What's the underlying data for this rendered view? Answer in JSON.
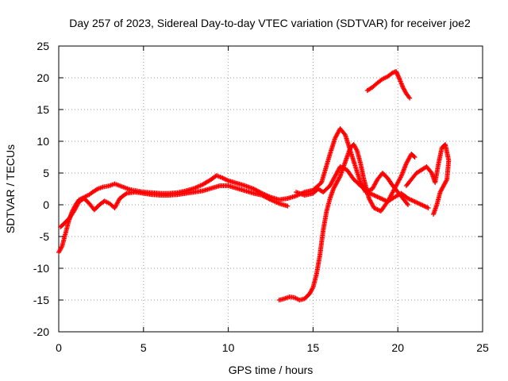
{
  "chart_data": {
    "type": "scatter",
    "title": "Day 257 of 2023, Sidereal Day-to-day VTEC variation (SDTVAR) for receiver joe2",
    "xlabel": "GPS time / hours",
    "ylabel": "SDTVAR / TECUs",
    "xlim": [
      0,
      25
    ],
    "ylim": [
      -20,
      25
    ],
    "xticks": [
      "0",
      "5",
      "10",
      "15",
      "20",
      "25"
    ],
    "yticks": [
      "-20",
      "-15",
      "-10",
      "-5",
      "0",
      "5",
      "10",
      "15",
      "20",
      "25"
    ],
    "grid": true,
    "legend": "none",
    "marker": "plus",
    "color": "#ff0000",
    "series": [
      {
        "name": "track-main",
        "x": [
          0.0,
          0.2,
          0.4,
          0.6,
          0.8,
          1.0,
          1.2,
          1.5,
          1.8,
          2.0,
          2.3,
          2.6,
          3.0,
          3.3,
          3.6,
          3.9,
          4.2,
          4.6,
          5.0,
          5.5,
          6.0,
          6.5,
          7.0,
          7.5,
          8.0,
          8.5,
          9.0,
          9.3,
          9.6,
          10.0,
          10.5,
          11.0,
          11.5,
          12.0,
          12.5,
          13.0,
          13.5,
          14.0,
          14.5,
          15.0,
          15.5,
          16.0,
          16.3,
          16.6,
          16.9,
          17.2,
          17.5,
          17.8,
          18.1,
          18.5,
          18.8,
          19.1,
          19.4,
          19.7,
          20.0,
          20.3,
          20.6
        ],
        "y": [
          -7.5,
          -6.5,
          -4.5,
          -2.5,
          -1.0,
          0.0,
          0.8,
          1.2,
          1.6,
          2.0,
          2.5,
          2.8,
          3.0,
          3.3,
          3.0,
          2.7,
          2.4,
          2.2,
          2.0,
          1.9,
          1.8,
          1.8,
          1.9,
          2.2,
          2.6,
          3.2,
          4.0,
          4.6,
          4.3,
          3.8,
          3.4,
          3.0,
          2.5,
          1.8,
          1.2,
          0.8,
          1.0,
          1.4,
          2.0,
          2.3,
          3.5,
          8.0,
          10.5,
          12.0,
          11.0,
          8.5,
          6.0,
          3.5,
          2.0,
          2.5,
          4.0,
          5.0,
          4.2,
          3.0,
          2.0,
          1.0,
          0.0
        ]
      },
      {
        "name": "track-lower-branch",
        "x": [
          0.1,
          0.3,
          0.6,
          0.9,
          1.2,
          1.5,
          1.8,
          2.1,
          2.4,
          2.7,
          3.0,
          3.3,
          3.6,
          4.0,
          4.5,
          5.0,
          5.5,
          6.0,
          6.5,
          7.0,
          7.5,
          8.0,
          8.5,
          9.0,
          9.5,
          10.0,
          10.5,
          11.0,
          11.5,
          12.0,
          12.5,
          13.0,
          13.5
        ],
        "y": [
          -3.5,
          -3.0,
          -2.2,
          -1.0,
          0.5,
          1.0,
          0.2,
          -0.8,
          0.0,
          0.6,
          0.2,
          -0.5,
          1.0,
          1.8,
          2.0,
          1.8,
          1.6,
          1.5,
          1.5,
          1.6,
          1.8,
          2.0,
          2.2,
          2.6,
          3.0,
          3.0,
          2.6,
          2.2,
          1.8,
          1.5,
          0.8,
          0.2,
          -0.2
        ]
      },
      {
        "name": "track-mid-branch",
        "x": [
          14.0,
          14.5,
          15.0,
          15.3,
          15.6,
          16.0,
          16.3,
          16.6,
          17.0,
          17.4,
          17.8,
          18.2,
          18.6,
          19.0,
          19.4,
          19.8,
          20.2,
          20.6,
          21.0,
          21.4,
          21.8
        ],
        "y": [
          2.0,
          1.5,
          1.8,
          2.5,
          2.0,
          3.0,
          4.5,
          6.0,
          5.5,
          4.0,
          3.0,
          2.0,
          1.5,
          1.0,
          0.5,
          1.2,
          1.8,
          1.0,
          0.5,
          0.0,
          -0.5
        ]
      },
      {
        "name": "track-dip-rise",
        "x": [
          13.0,
          13.3,
          13.6,
          13.9,
          14.2,
          14.5,
          14.8,
          15.0,
          15.2,
          15.4,
          15.6,
          15.8,
          16.0,
          16.2,
          16.4,
          16.6,
          16.8,
          17.0,
          17.2,
          17.4,
          17.6,
          17.8,
          18.0,
          18.3,
          18.6,
          19.0,
          19.4,
          19.8,
          20.2,
          20.5,
          20.8,
          21.0
        ],
        "y": [
          -15.0,
          -14.8,
          -14.5,
          -14.6,
          -15.0,
          -14.8,
          -14.0,
          -13.0,
          -11.0,
          -8.0,
          -4.0,
          -1.0,
          1.0,
          2.5,
          3.5,
          4.5,
          6.0,
          7.5,
          9.0,
          9.5,
          8.5,
          6.5,
          4.0,
          1.0,
          -0.5,
          -1.0,
          0.5,
          2.5,
          4.5,
          6.5,
          8.0,
          7.5
        ]
      },
      {
        "name": "track-high-arc",
        "x": [
          18.2,
          18.5,
          18.8,
          19.1,
          19.4,
          19.7,
          19.9,
          20.1,
          20.3,
          20.5,
          20.7
        ],
        "y": [
          18.0,
          18.5,
          19.2,
          19.8,
          20.2,
          20.8,
          21.0,
          19.8,
          18.5,
          17.5,
          16.8
        ]
      },
      {
        "name": "track-late",
        "x": [
          20.5,
          20.8,
          21.1,
          21.4,
          21.7,
          22.0,
          22.2,
          22.4,
          22.6,
          22.8,
          23.0,
          22.9,
          22.7,
          22.5,
          22.3,
          22.1
        ],
        "y": [
          3.0,
          4.0,
          5.0,
          5.5,
          6.0,
          5.0,
          3.5,
          6.5,
          9.0,
          9.5,
          7.0,
          4.0,
          3.0,
          2.0,
          0.0,
          -1.5
        ]
      }
    ]
  }
}
